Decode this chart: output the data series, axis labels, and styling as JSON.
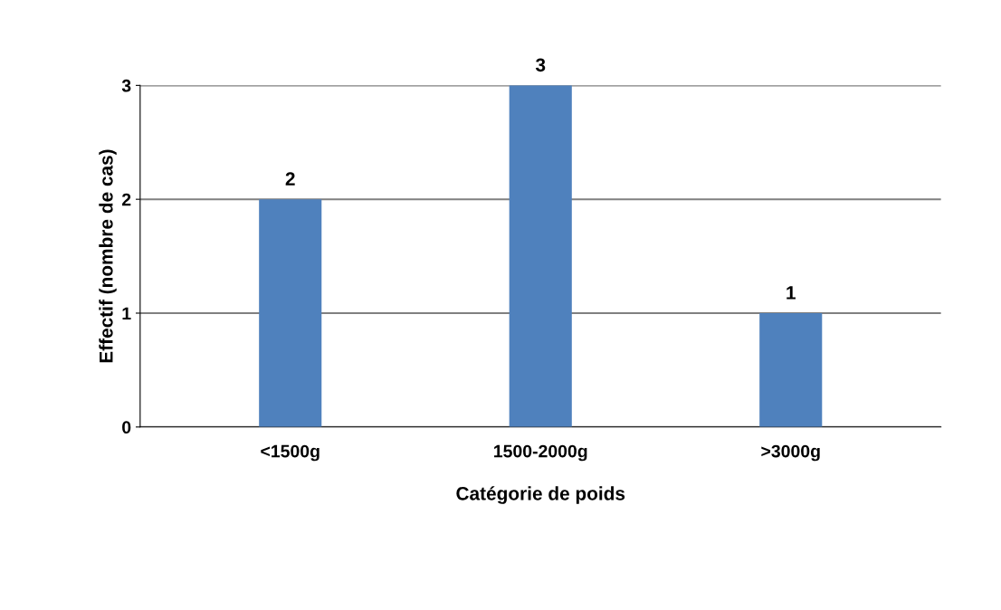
{
  "chart_data": {
    "type": "bar",
    "xlabel": "Catégorie de poids",
    "ylabel": "Effectif (nombre de cas)",
    "categories": [
      "<1500g",
      "1500-2000g",
      ">3000g"
    ],
    "values": [
      2,
      3,
      1
    ],
    "color": "#4f81bd",
    "ylim": [
      0,
      3
    ],
    "yticks": [
      0,
      1,
      2,
      3
    ],
    "grid": "y",
    "data_labels": true
  }
}
